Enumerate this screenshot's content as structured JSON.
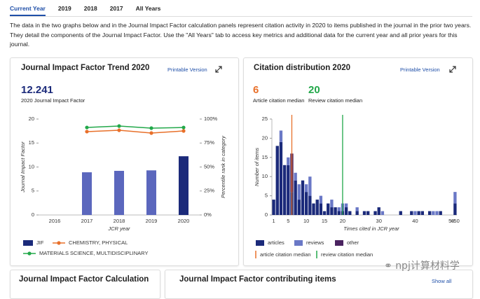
{
  "tabs": [
    "Current Year",
    "2019",
    "2018",
    "2017",
    "All Years"
  ],
  "description": "The data in the two graphs below and in the Journal Impact Factor calculation panels represent citation activity in 2020 to items published in the journal in the prior two years. They detail the components of the Journal Impact Factor. Use the \"All Years\" tab to access key metrics and additional data for the current year and all prior years for this journal.",
  "panels": [
    {
      "title": "Journal Impact Factor Trend 2020",
      "link": "Printable Version",
      "metric": {
        "value": 12.241,
        "label": "2020 Journal Impact Factor"
      }
    },
    {
      "title": "Citation distribution 2020",
      "link": "Printable Version"
    },
    {
      "title": "Journal Impact Factor Calculation"
    },
    {
      "title": "Journal Impact Factor contributing items",
      "link": "Show all"
    }
  ],
  "watermark": "npj计算材料学",
  "chart_data": [
    {
      "type": "bar_line",
      "categories": [
        "2016",
        "2017",
        "2018",
        "2019",
        "2020"
      ],
      "xlabel": "JCR year",
      "ylabel": "Journal Impact Factor",
      "y2label": "Percentile rank in category",
      "ylim": [
        0,
        20
      ],
      "yticks": [
        0,
        5,
        10,
        15,
        20
      ],
      "y2lim": [
        0,
        100
      ],
      "y2ticks": [
        {
          "value": 0,
          "label": "0%"
        },
        {
          "value": 25,
          "label": "25%"
        },
        {
          "value": 50,
          "label": "50%"
        },
        {
          "value": 75,
          "label": "75%"
        },
        {
          "value": 100,
          "label": "100%"
        }
      ],
      "series": [
        {
          "name": "JIF",
          "type": "bar",
          "color": "#1b2a7a",
          "bar_colors": [
            "#5b67bd",
            "#5b67bd",
            "#5b67bd",
            "#5b67bd",
            "#1b2a7a"
          ],
          "values": [
            null,
            8.9,
            9.2,
            9.3,
            12.241
          ]
        },
        {
          "name": "CHEMISTRY, PHYSICAL",
          "type": "line",
          "axis": "y2",
          "color": "#e8702a",
          "values": [
            null,
            86.9,
            88.3,
            85.4,
            87.6
          ]
        },
        {
          "name": "MATERIALS SCIENCE, MULTIDISCIPLINARY",
          "type": "line",
          "axis": "y2",
          "color": "#22a84a",
          "values": [
            null,
            91.2,
            92.7,
            90.5,
            91.2
          ]
        }
      ]
    },
    {
      "type": "stacked_bar",
      "categories": [
        "1",
        null,
        null,
        null,
        "5",
        null,
        null,
        null,
        null,
        "10",
        null,
        null,
        null,
        null,
        "15",
        null,
        null,
        null,
        null,
        "20",
        null,
        null,
        null,
        null,
        null,
        null,
        null,
        null,
        null,
        "30",
        null,
        null,
        null,
        null,
        null,
        null,
        null,
        null,
        null,
        "40",
        null,
        null,
        null,
        null,
        null,
        null,
        null,
        null,
        null,
        "50",
        ">50"
      ],
      "xlabel": "Times cited in JCR year",
      "ylabel": "Number of items",
      "ylim": [
        0,
        25
      ],
      "yticks": [
        0,
        5,
        10,
        15,
        20,
        25
      ],
      "series": [
        {
          "name": "articles",
          "color": "#1b2a7a",
          "values": [
            4,
            18,
            19,
            13,
            13,
            6,
            9,
            4,
            9,
            6,
            5,
            3,
            4,
            3,
            1,
            3,
            2,
            2,
            1,
            1,
            2,
            1,
            0,
            1,
            0,
            1,
            1,
            0,
            1,
            2,
            0,
            0,
            0,
            0,
            0,
            1,
            0,
            0,
            1,
            0,
            1,
            1,
            0,
            1,
            0,
            0,
            1,
            0,
            0,
            0,
            3
          ]
        },
        {
          "name": "reviews",
          "color": "#6a78c6",
          "values": [
            0,
            0,
            3,
            0,
            2,
            0,
            2,
            4,
            0,
            2,
            5,
            0,
            0,
            2,
            0,
            0,
            2,
            0,
            1,
            2,
            1,
            0,
            0,
            1,
            0,
            0,
            0,
            0,
            0,
            0,
            1,
            0,
            0,
            0,
            0,
            0,
            0,
            0,
            0,
            1,
            0,
            0,
            0,
            0,
            1,
            1,
            0,
            0,
            0,
            0,
            3
          ]
        },
        {
          "name": "other",
          "color": "#4a2360",
          "values": [
            0,
            0,
            0,
            0,
            0,
            10,
            0,
            0,
            0,
            0,
            0,
            0,
            0,
            0,
            0,
            0,
            0,
            0,
            0,
            0,
            0,
            0,
            0,
            0,
            0,
            0,
            0,
            0,
            0,
            0,
            0,
            0,
            0,
            0,
            0,
            0,
            0,
            0,
            0,
            0,
            0,
            0,
            0,
            0,
            0,
            0,
            0,
            0,
            0,
            0,
            0
          ]
        }
      ],
      "medians": [
        {
          "value": 6,
          "label": "Article citation median",
          "legend": "article citation median",
          "color": "#e8702a"
        },
        {
          "value": 20,
          "label": "Review citation median",
          "legend": "review citation median",
          "color": "#22a84a"
        }
      ]
    }
  ]
}
